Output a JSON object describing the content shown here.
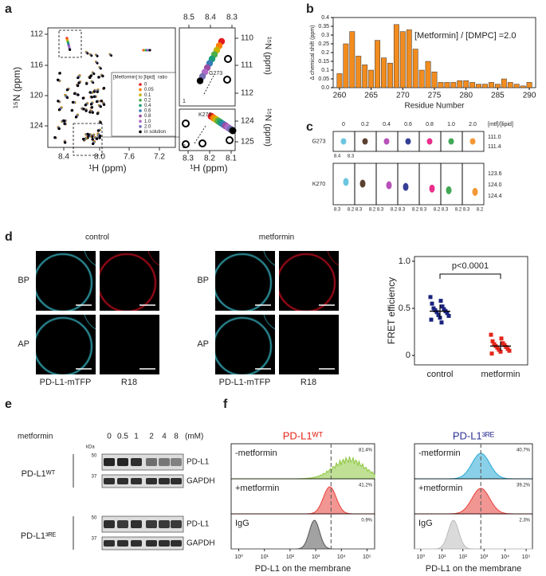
{
  "panel_labels": [
    "a",
    "b",
    "c",
    "d",
    "e",
    "f"
  ],
  "panel_a": {
    "y_label": "¹⁵N (ppm)",
    "x_label": "¹H (ppm)",
    "yticks": [
      "112",
      "116",
      "120",
      "124"
    ],
    "xticks": [
      "8.4",
      "8.0",
      "7.6",
      "7.2"
    ],
    "legend_title": "[Metformin] to [lipid]",
    "legend_suffix": "ratio",
    "legend": [
      {
        "label": "0",
        "color": "#e41a1c"
      },
      {
        "label": "0.05",
        "color": "#ff7f00"
      },
      {
        "label": "0.1",
        "color": "#c8b400"
      },
      {
        "label": "0.2",
        "color": "#4daf4a"
      },
      {
        "label": "0.4",
        "color": "#1b9e77"
      },
      {
        "label": "0.6",
        "color": "#377eb8"
      },
      {
        "label": "0.8",
        "color": "#984ea3"
      },
      {
        "label": "1.0",
        "color": "#b06cc8"
      },
      {
        "label": "2.0",
        "color": "#7570b3"
      },
      {
        "label": "in solution",
        "color": "#000000"
      }
    ],
    "inset1": {
      "top_ticks": [
        "8.5",
        "8.4",
        "8.3"
      ],
      "right_ticks": [
        "110",
        "111",
        "112"
      ],
      "peak": "G273",
      "number": "1"
    },
    "inset2": {
      "right_ticks": [
        "124",
        "125"
      ],
      "bottom_ticks": [
        "8.3",
        "8.2",
        "8.1"
      ],
      "peak": "K270",
      "number": "2"
    },
    "inset_y_label": "¹⁵N (ppm)",
    "inset_x_label": "¹H (ppm)"
  },
  "chart_data": [
    {
      "type": "bar",
      "title": "[Metformin] / [DMPC] =2.0",
      "xlabel": "Residue Number",
      "ylabel": "Δ chemical shift (ppm)",
      "color": "#f28c1e",
      "x": [
        260,
        261,
        262,
        263,
        264,
        265,
        266,
        267,
        268,
        269,
        270,
        271,
        272,
        273,
        274,
        275,
        276,
        277,
        278,
        279,
        280,
        281,
        282,
        283,
        284,
        285,
        286,
        287,
        288,
        289,
        290
      ],
      "values": [
        0.08,
        0.25,
        0.32,
        0.18,
        0.13,
        0.1,
        0.27,
        0.17,
        0.14,
        0.36,
        0.32,
        0.33,
        0.22,
        0.1,
        0.15,
        0.09,
        0.03,
        0.03,
        0.03,
        0.04,
        0.04,
        0.03,
        0.02,
        0.02,
        0.03,
        0.02,
        0.05,
        0.03,
        0.02,
        0.01,
        0.03
      ],
      "xlim": [
        259,
        291
      ],
      "xticks": [
        260,
        265,
        270,
        275,
        280,
        285,
        290
      ],
      "ylim": [
        0,
        0.4
      ],
      "yticks": [
        {
          "value": 0,
          "label": "0.0"
        },
        0.05,
        0.1,
        0.15,
        0.2,
        0.25,
        0.3,
        0.35,
        0.4
      ]
    },
    {
      "type": "dot",
      "ylabel": "FRET efficiency",
      "annotation": "p<0.0001",
      "categories": [
        "control",
        "metformin"
      ],
      "colors": [
        "#1a237e",
        "#e32619"
      ],
      "values": [
        [
          0.62,
          0.58,
          0.55,
          0.52,
          0.5,
          0.49,
          0.48,
          0.47,
          0.46,
          0.45,
          0.43,
          0.42,
          0.4,
          0.38,
          0.35
        ],
        [
          0.22,
          0.18,
          0.15,
          0.13,
          0.12,
          0.11,
          0.1,
          0.09,
          0.08,
          0.07,
          0.06,
          0.05,
          0.04,
          0.02
        ]
      ],
      "means": [
        0.47,
        0.1
      ],
      "sds": [
        0.07,
        0.05
      ],
      "ylim": [
        -0.1,
        1.05
      ],
      "yticks": [
        0,
        0.5,
        {
          "value": 1,
          "label": "1.0"
        }
      ]
    }
  ],
  "panel_c": {
    "ratio_label": "[mtf]/[lipid]",
    "ratios": [
      "0",
      "0.2",
      "0.4",
      "0.6",
      "0.8",
      "1.0",
      "2.0"
    ],
    "colors": [
      "#5bc0de",
      "#4a2c1a",
      "#b03fb0",
      "#1f2a8a",
      "#e6187f",
      "#2e9e44",
      "#f28c1e"
    ],
    "rows": [
      {
        "label": "G273",
        "yticks": [
          "111.0",
          "111.4"
        ],
        "xticks": [
          "8.4",
          "8.3"
        ]
      },
      {
        "label": "K270",
        "yticks": [
          "123.6",
          "124.0",
          "124.4"
        ],
        "xticks": [
          "8.3",
          "8.2"
        ]
      }
    ]
  },
  "panel_d": {
    "conditions": [
      "control",
      "metformin"
    ],
    "rows": [
      "BP",
      "AP"
    ],
    "channels": [
      "PD-L1-mTFP",
      "R18"
    ]
  },
  "panel_e": {
    "treatment": "metformin",
    "concentrations": [
      "0",
      "0.5",
      "1",
      "2",
      "4",
      "8"
    ],
    "unit": "(mM)",
    "kda_label": "kDa",
    "blots": [
      {
        "label": "PD-L1ᵂᵀ",
        "bands": [
          {
            "name": "PD-L1",
            "marker": "50"
          },
          {
            "name": "GAPDH",
            "marker": "37"
          }
        ]
      },
      {
        "label": "PD-L1³ᴿᴱ",
        "bands": [
          {
            "name": "PD-L1",
            "marker": "50"
          },
          {
            "name": "GAPDH",
            "marker": "37"
          }
        ]
      }
    ]
  },
  "panel_f": {
    "x_label": "PD-L1 on the membrane",
    "xticks": [
      "10⁰",
      "10¹",
      "10²",
      "10³",
      "10⁴",
      "10⁵"
    ],
    "plots": [
      {
        "title": "PD-L1ᵂᵀ",
        "title_color": "#e32619",
        "rows": [
          {
            "label": "-metformin",
            "percent": "81.4%",
            "color": "#8dc63f"
          },
          {
            "label": "+metformin",
            "percent": "41.2%",
            "color": "#e8403a"
          },
          {
            "label": "IgG",
            "percent": "0.9%",
            "color": "#555555"
          }
        ]
      },
      {
        "title": "PD-L1³ᴿᴱ",
        "title_color": "#2e3192",
        "rows": [
          {
            "label": "-metformin",
            "percent": "40.7%",
            "color": "#29a9d6"
          },
          {
            "label": "+metformin",
            "percent": "39.2%",
            "color": "#e8403a"
          },
          {
            "label": "IgG",
            "percent": "2.3%",
            "color": "#bbbbbb"
          }
        ]
      }
    ]
  }
}
